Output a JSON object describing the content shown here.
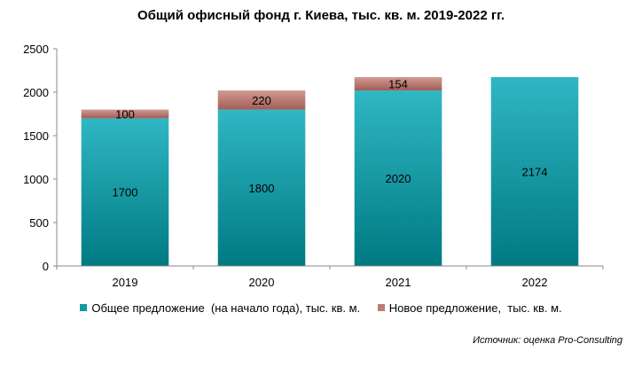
{
  "chart_data": {
    "type": "bar",
    "stacked": true,
    "title": "Общий офисный фонд г. Киева, тыс. кв. м. 2019-2022 гг.",
    "categories": [
      "2019",
      "2020",
      "2021",
      "2022"
    ],
    "series": [
      {
        "name": "Общее предложение  (на начало года), тыс. кв. м.",
        "values": [
          1700,
          1800,
          2020,
          2174
        ],
        "labels": [
          "1700",
          "1800",
          "2020",
          "2174"
        ],
        "color_light": "#2fb7c3",
        "color_dark": "#007a82"
      },
      {
        "name": "Новое предложение,  тыс. кв. м.",
        "values": [
          100,
          220,
          154,
          null
        ],
        "labels": [
          "100",
          "220",
          "154",
          ""
        ],
        "color_light": "#d19a93",
        "color_dark": "#a35d55"
      }
    ],
    "ylim": [
      0,
      2500
    ],
    "yticks": [
      "0",
      "500",
      "1000",
      "1500",
      "2000",
      "2500"
    ],
    "grid": false,
    "legend_position": "bottom",
    "source_note": "Источник: оценка Pro-Consulting"
  }
}
